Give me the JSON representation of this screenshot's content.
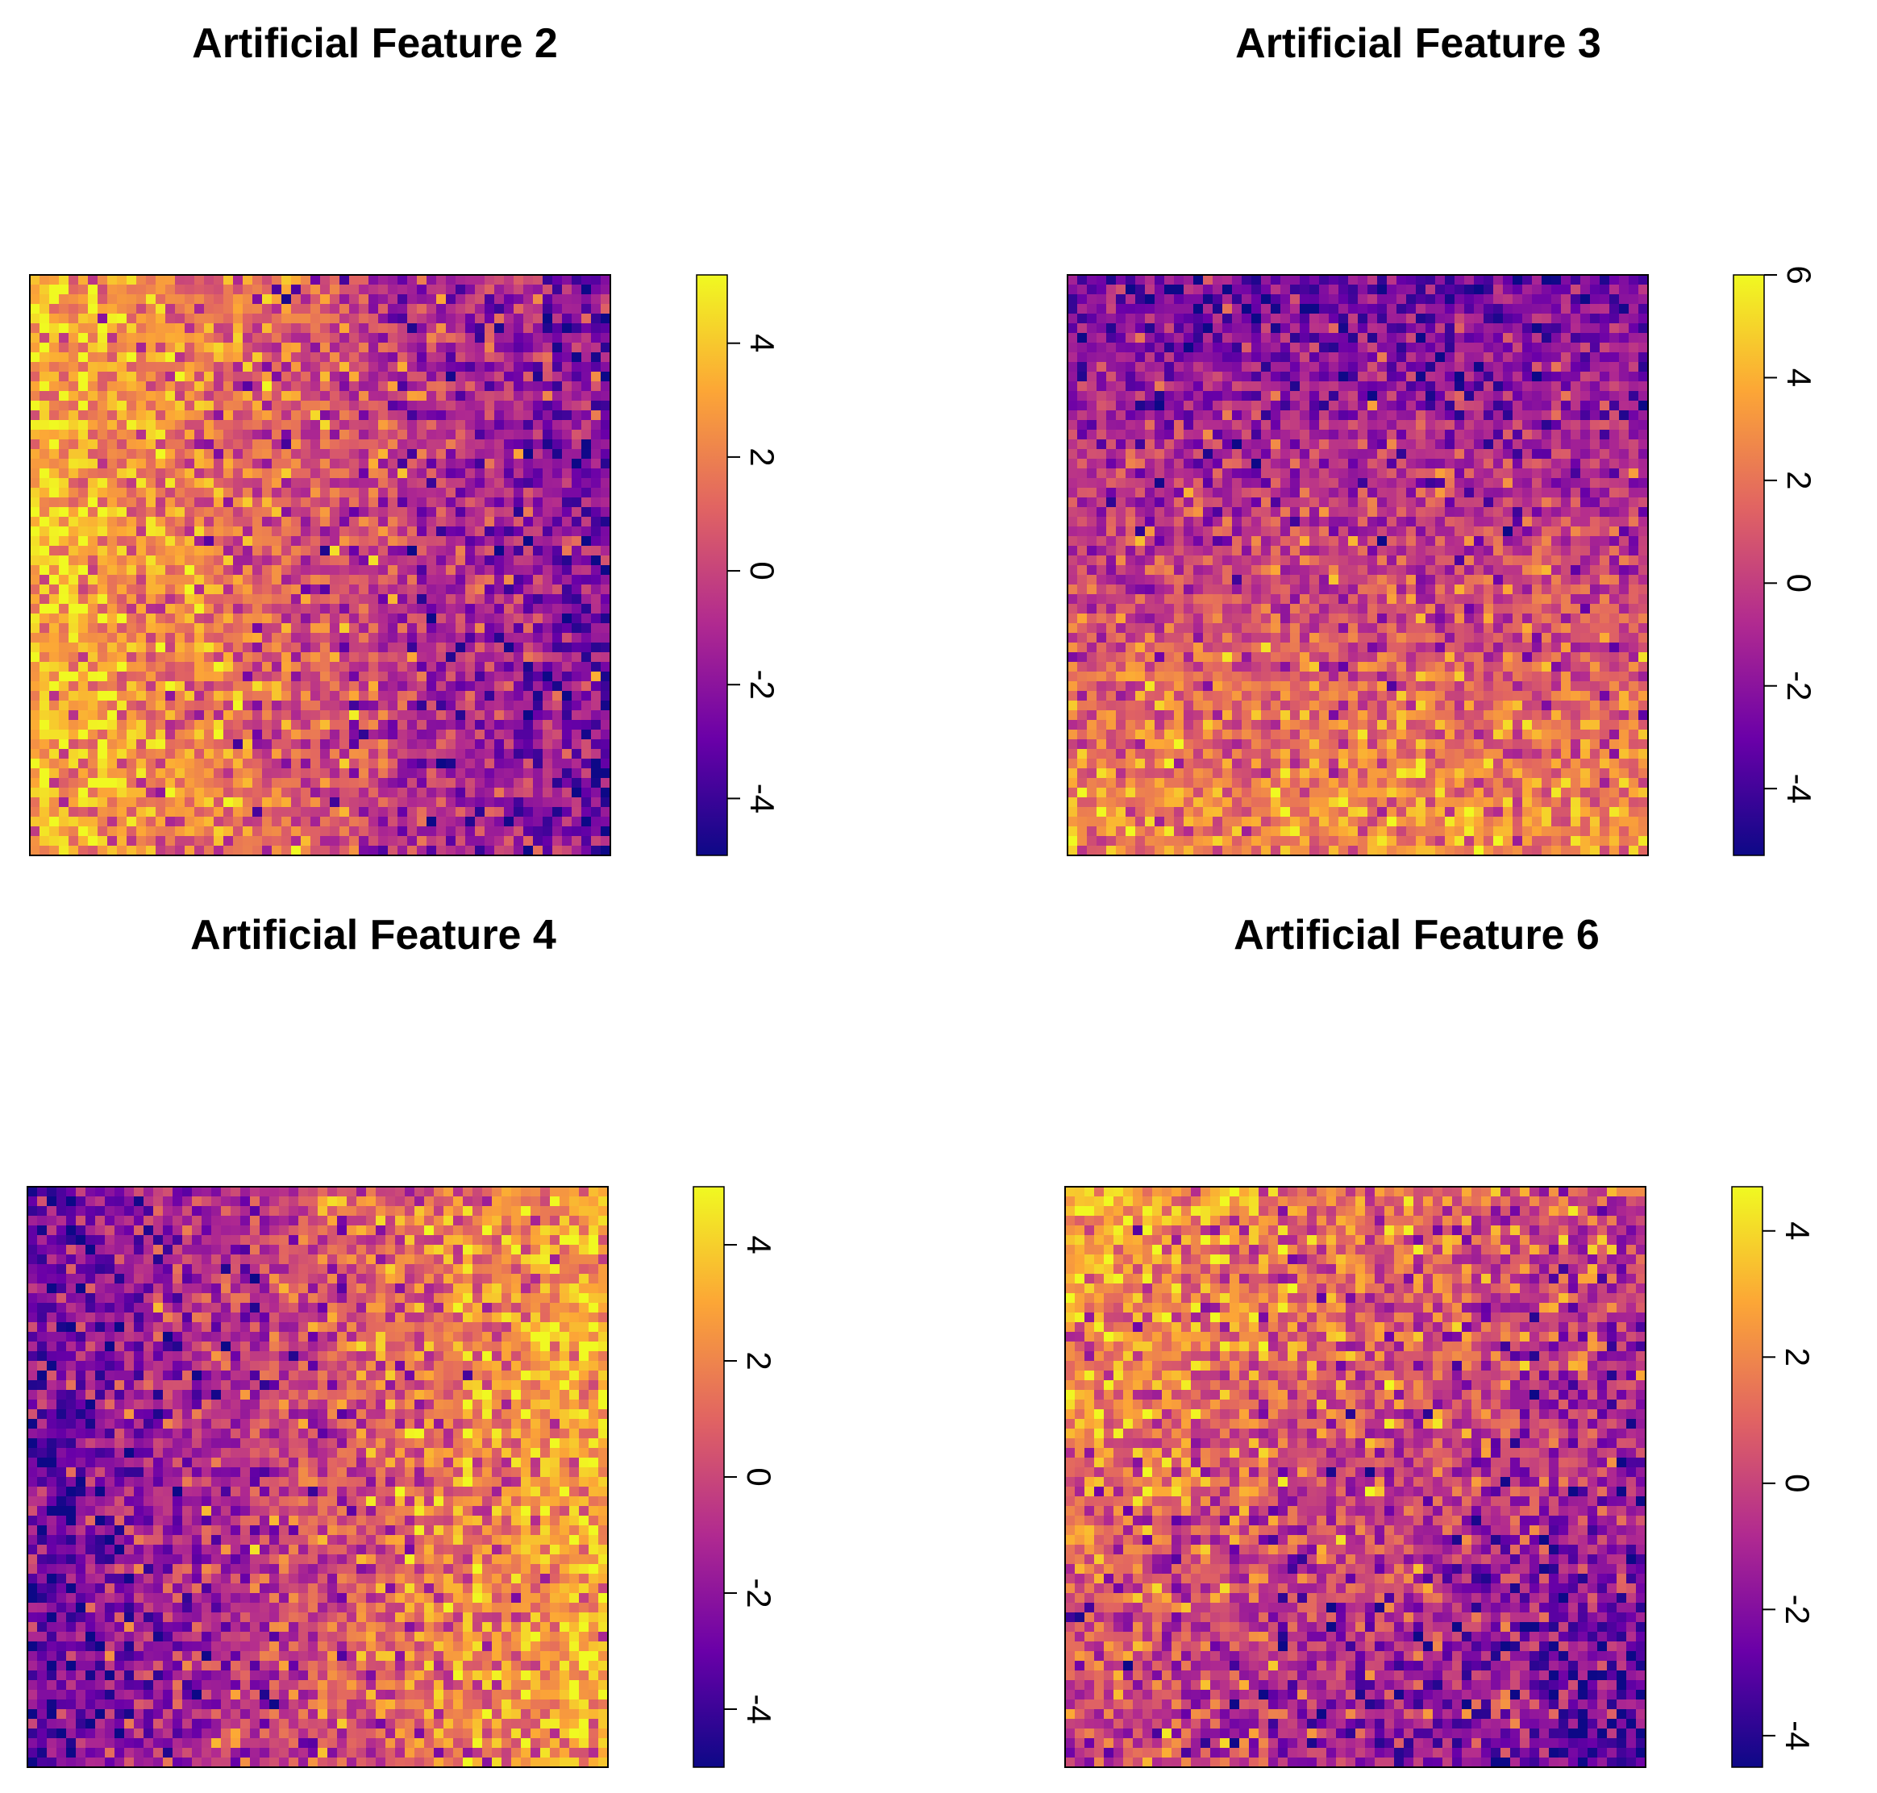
{
  "figure": {
    "colormap": [
      "#0d0887",
      "#6a00a8",
      "#b12a90",
      "#e16462",
      "#fca636",
      "#f0f921"
    ],
    "border_color": "#000000"
  },
  "chart_data": [
    {
      "type": "heatmap",
      "title": "Artificial Feature 2",
      "grid": [
        60,
        60
      ],
      "gradient": "left-to-right",
      "edge_values": {
        "start": 3.5,
        "end": -2.5
      },
      "noise": 1.6,
      "colorbar": {
        "ticks": [
          "4",
          "2",
          "0",
          "-2",
          "-4"
        ],
        "tick_values": [
          4,
          2,
          0,
          -2,
          -4
        ],
        "range": [
          -5,
          5.2
        ]
      }
    },
    {
      "type": "heatmap",
      "title": "Artificial Feature 3",
      "grid": [
        60,
        60
      ],
      "gradient": "top-to-bottom",
      "edge_values": {
        "start": -2.8,
        "end": 3.0
      },
      "noise": 1.6,
      "colorbar": {
        "ticks": [
          "6",
          "4",
          "2",
          "0",
          "-2",
          "-4"
        ],
        "tick_values": [
          6,
          4,
          2,
          0,
          -2,
          -4
        ],
        "range": [
          -5.3,
          6
        ]
      }
    },
    {
      "type": "heatmap",
      "title": "Artificial Feature 4",
      "grid": [
        60,
        60
      ],
      "gradient": "left-to-right",
      "edge_values": {
        "start": -3.0,
        "end": 3.2
      },
      "noise": 1.6,
      "colorbar": {
        "ticks": [
          "4",
          "2",
          "0",
          "-2",
          "-4"
        ],
        "tick_values": [
          4,
          2,
          0,
          -2,
          -4
        ],
        "range": [
          -5,
          5
        ]
      }
    },
    {
      "type": "heatmap",
      "title": "Artificial Feature 6",
      "grid": [
        60,
        60
      ],
      "gradient": "top-left-to-bottom-right",
      "edge_values": {
        "start": 2.8,
        "end": -2.8
      },
      "noise": 1.6,
      "colorbar": {
        "ticks": [
          "4",
          "2",
          "0",
          "-2",
          "-4"
        ],
        "tick_values": [
          4,
          2,
          0,
          -2,
          -4
        ],
        "range": [
          -4.5,
          4.7
        ]
      }
    }
  ]
}
